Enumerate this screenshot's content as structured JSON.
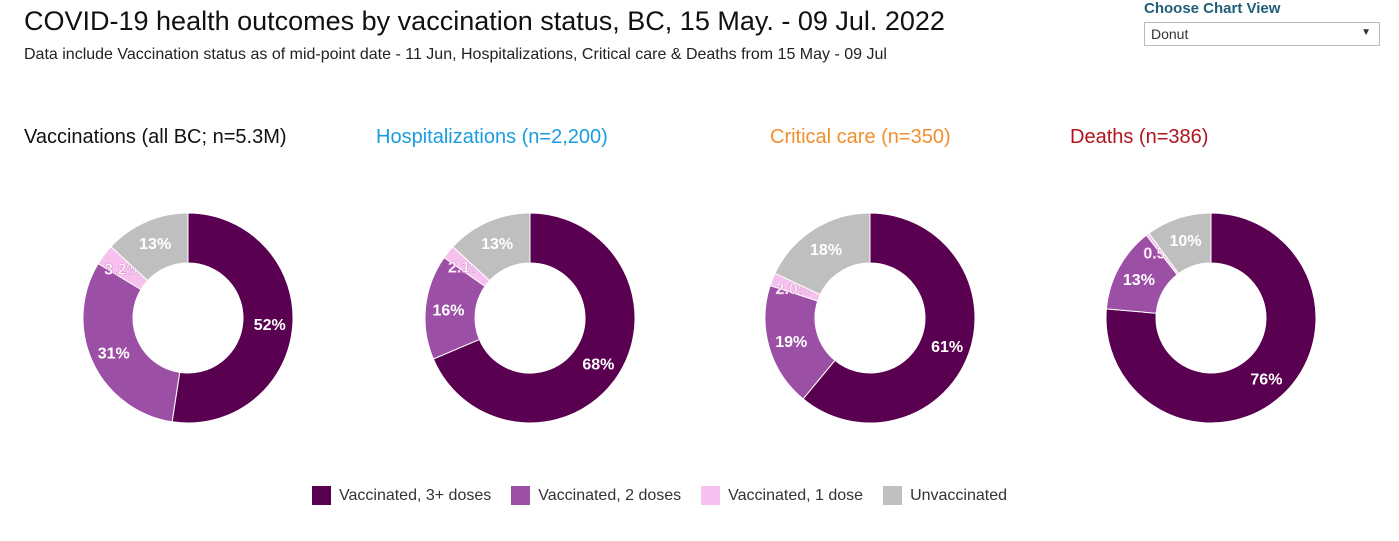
{
  "header": {
    "title": "COVID-19 health outcomes by vaccination status, BC,  15 May. - 09 Jul. 2022",
    "subtitle": "Data include Vaccination status as of mid-point date - 11 Jun, Hospitalizations, Critical care & Deaths from 15 May - 09 Jul"
  },
  "chart_view": {
    "label": "Choose Chart View",
    "value": "Donut"
  },
  "colors": {
    "dose3": "#5a0050",
    "dose2": "#9b4fa5",
    "dose1": "#f7c1ef",
    "unvax": "#bfbfbf"
  },
  "chart_data": [
    {
      "type": "pie",
      "title": "Vaccinations (all BC; n=5.3M)",
      "title_color": "#111111",
      "categories": [
        "Vaccinated, 3+ doses",
        "Vaccinated, 2 doses",
        "Vaccinated, 1 dose",
        "Unvaccinated"
      ],
      "values": [
        52,
        31,
        3.2,
        13
      ],
      "labels": [
        "52%",
        "31%",
        "3.2%",
        "13%"
      ]
    },
    {
      "type": "pie",
      "title": "Hospitalizations (n=2,200)",
      "title_color": "#1a9de0",
      "categories": [
        "Vaccinated, 3+ doses",
        "Vaccinated, 2 doses",
        "Vaccinated, 1 dose",
        "Unvaccinated"
      ],
      "values": [
        68,
        16,
        2.1,
        13
      ],
      "labels": [
        "68%",
        "16%",
        "2.1%",
        "13%"
      ]
    },
    {
      "type": "pie",
      "title": "Critical care (n=350)",
      "title_color": "#f28e2b",
      "categories": [
        "Vaccinated, 3+ doses",
        "Vaccinated, 2 doses",
        "Vaccinated, 1 dose",
        "Unvaccinated"
      ],
      "values": [
        61,
        19,
        2.0,
        18
      ],
      "labels": [
        "61%",
        "19%",
        "2.0%",
        "18%"
      ]
    },
    {
      "type": "pie",
      "title": "Deaths (n=386)",
      "title_color": "#b0141c",
      "categories": [
        "Vaccinated, 3+ doses",
        "Vaccinated, 2 doses",
        "Vaccinated, 1 dose",
        "Unvaccinated"
      ],
      "values": [
        76,
        13,
        0.5,
        10
      ],
      "labels": [
        "76%",
        "13%",
        "0.5%",
        "10%"
      ]
    }
  ],
  "legend": [
    "Vaccinated, 3+ doses",
    "Vaccinated, 2 doses",
    "Vaccinated, 1 dose",
    "Unvaccinated"
  ]
}
